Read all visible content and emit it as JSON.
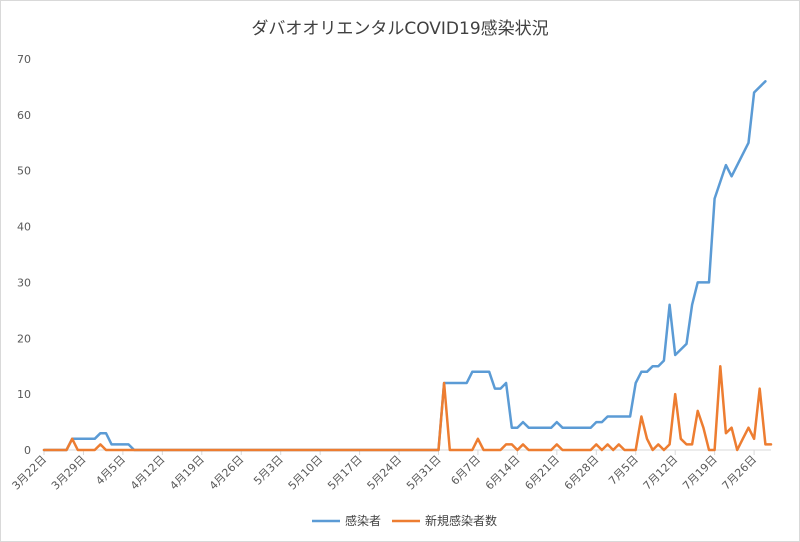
{
  "chart_data": {
    "type": "line",
    "title": "ダバオオリエンタルCOVID19感染状況",
    "xlabel": "",
    "ylabel": "",
    "ylim": [
      0,
      70
    ],
    "yticks": [
      0,
      10,
      20,
      30,
      40,
      50,
      60,
      70
    ],
    "x_start": "3月22日",
    "x_end": "7月27日",
    "xtick_labels": [
      "3月22日",
      "3月29日",
      "4月5日",
      "4月12日",
      "4月19日",
      "4月26日",
      "5月3日",
      "5月10日",
      "5月17日",
      "5月24日",
      "5月31日",
      "6月7日",
      "6月14日",
      "6月21日",
      "6月28日",
      "7月5日",
      "7月12日",
      "7月19日",
      "7月26日"
    ],
    "grid": "none",
    "legend": "bottom",
    "series": [
      {
        "name": "感染者",
        "color": "#5b9bd5",
        "points": [
          [
            0,
            0
          ],
          [
            4,
            0
          ],
          [
            5,
            2
          ],
          [
            9,
            2
          ],
          [
            10,
            3
          ],
          [
            11,
            3
          ],
          [
            12,
            1
          ],
          [
            15,
            1
          ],
          [
            16,
            0
          ],
          [
            70,
            0
          ],
          [
            71,
            12
          ],
          [
            75,
            12
          ],
          [
            76,
            14
          ],
          [
            79,
            14
          ],
          [
            80,
            11
          ],
          [
            81,
            11
          ],
          [
            82,
            12
          ],
          [
            83,
            4
          ],
          [
            84,
            4
          ],
          [
            85,
            5
          ],
          [
            86,
            4
          ],
          [
            90,
            4
          ],
          [
            91,
            5
          ],
          [
            92,
            4
          ],
          [
            97,
            4
          ],
          [
            98,
            5
          ],
          [
            99,
            5
          ],
          [
            100,
            6
          ],
          [
            104,
            6
          ],
          [
            105,
            12
          ],
          [
            106,
            14
          ],
          [
            107,
            14
          ],
          [
            108,
            15
          ],
          [
            109,
            15
          ],
          [
            110,
            16
          ],
          [
            111,
            26
          ],
          [
            112,
            17
          ],
          [
            114,
            19
          ],
          [
            115,
            26
          ],
          [
            116,
            30
          ],
          [
            118,
            30
          ],
          [
            119,
            45
          ],
          [
            121,
            51
          ],
          [
            122,
            49
          ],
          [
            125,
            55
          ],
          [
            126,
            64
          ],
          [
            128,
            66
          ]
        ]
      },
      {
        "name": "新規感染者数",
        "color": "#ed7d31",
        "points": [
          [
            0,
            0
          ],
          [
            4,
            0
          ],
          [
            5,
            2
          ],
          [
            6,
            0
          ],
          [
            9,
            0
          ],
          [
            10,
            1
          ],
          [
            11,
            0
          ],
          [
            70,
            0
          ],
          [
            71,
            12
          ],
          [
            72,
            0
          ],
          [
            76,
            0
          ],
          [
            77,
            2
          ],
          [
            78,
            0
          ],
          [
            81,
            0
          ],
          [
            82,
            1
          ],
          [
            83,
            1
          ],
          [
            84,
            0
          ],
          [
            85,
            1
          ],
          [
            86,
            0
          ],
          [
            90,
            0
          ],
          [
            91,
            1
          ],
          [
            92,
            0
          ],
          [
            97,
            0
          ],
          [
            98,
            1
          ],
          [
            99,
            0
          ],
          [
            100,
            1
          ],
          [
            101,
            0
          ],
          [
            102,
            1
          ],
          [
            103,
            0
          ],
          [
            104,
            0
          ],
          [
            105,
            0
          ],
          [
            106,
            6
          ],
          [
            107,
            2
          ],
          [
            108,
            0
          ],
          [
            109,
            1
          ],
          [
            110,
            0
          ],
          [
            111,
            1
          ],
          [
            112,
            10
          ],
          [
            113,
            2
          ],
          [
            114,
            1
          ],
          [
            115,
            1
          ],
          [
            116,
            7
          ],
          [
            117,
            4
          ],
          [
            118,
            0
          ],
          [
            119,
            0
          ],
          [
            120,
            15
          ],
          [
            121,
            3
          ],
          [
            122,
            4
          ],
          [
            123,
            0
          ],
          [
            124,
            2
          ],
          [
            125,
            4
          ],
          [
            126,
            2
          ],
          [
            127,
            11
          ],
          [
            128,
            1
          ],
          [
            129,
            1
          ]
        ]
      }
    ]
  }
}
